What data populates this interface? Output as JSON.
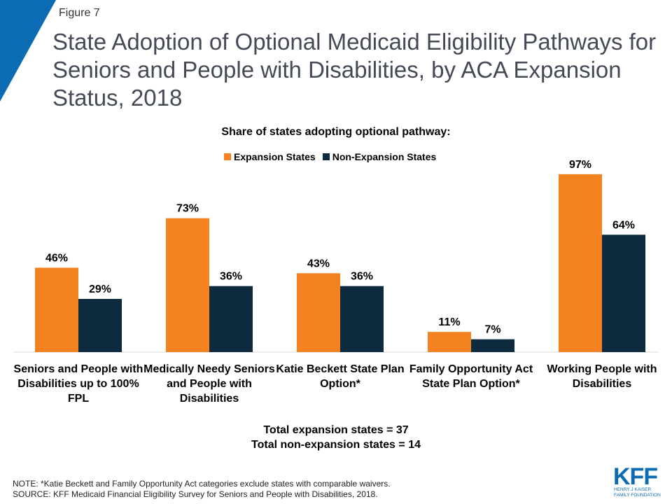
{
  "figure_label": "Figure 7",
  "title": "State Adoption of Optional Medicaid Eligibility Pathways for Seniors and People with Disabilities, by ACA Expansion Status, 2018",
  "colors": {
    "accent": "#0b6bb3",
    "expansion": "#f58220",
    "non_expansion": "#0d2a3f",
    "title_text": "#444a55"
  },
  "chart_data": {
    "type": "bar",
    "subtitle": "Share of states adopting optional pathway:",
    "categories": [
      "Seniors and People with Disabilities up to 100% FPL",
      "Medically Needy Seniors and People with Disabilities",
      "Katie Beckett State Plan Option*",
      "Family Opportunity Act State Plan Option*",
      "Working People with Disabilities"
    ],
    "series": [
      {
        "name": "Expansion States",
        "color": "#f58220",
        "values": [
          46,
          73,
          43,
          11,
          97
        ],
        "labels": [
          "46%",
          "73%",
          "43%",
          "11%",
          "97%"
        ]
      },
      {
        "name": "Non-Expansion States",
        "color": "#0d2a3f",
        "values": [
          29,
          36,
          36,
          7,
          64
        ],
        "labels": [
          "29%",
          "36%",
          "36%",
          "7%",
          "64%"
        ]
      }
    ],
    "ylim": [
      0,
      100
    ],
    "grid": false,
    "legend_position": "top-center"
  },
  "totals": [
    "Total expansion states = 37",
    "Total non-expansion states = 14"
  ],
  "note": "NOTE:  *Katie Beckett and Family Opportunity Act categories exclude states with comparable waivers.",
  "source": "SOURCE: KFF Medicaid Financial Eligibility Survey for Seniors and People with Disabilities, 2018.",
  "logo": {
    "mark": "KFF",
    "line1": "HENRY J KAISER",
    "line2": "FAMILY FOUNDATION"
  }
}
